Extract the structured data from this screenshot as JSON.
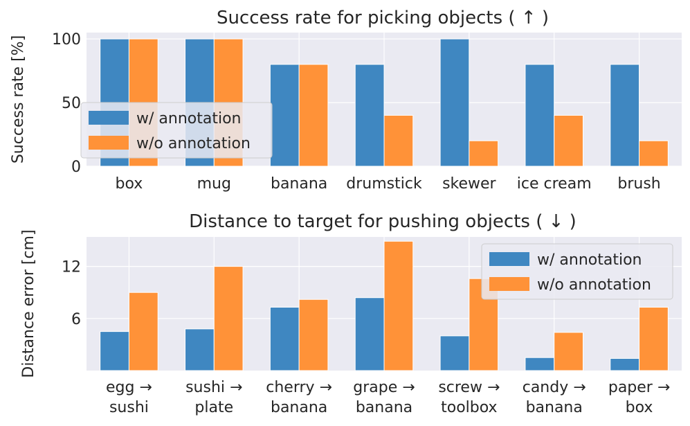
{
  "chart_data": [
    {
      "type": "bar",
      "title": "Success rate for picking objects ( ↑ )",
      "xlabel": "",
      "ylabel": "Success rate [%]",
      "ylim": [
        0,
        105
      ],
      "yticks": [
        0,
        50,
        100
      ],
      "categories": [
        [
          "box"
        ],
        [
          "mug"
        ],
        [
          "banana"
        ],
        [
          "drumstick"
        ],
        [
          "skewer"
        ],
        [
          "ice cream"
        ],
        [
          "brush"
        ]
      ],
      "series": [
        {
          "name": "w/ annotation",
          "color": "#3f87c1",
          "values": [
            100,
            100,
            80,
            80,
            100,
            80,
            80
          ]
        },
        {
          "name": "w/o annotation",
          "color": "#ff9238",
          "values": [
            100,
            100,
            80,
            40,
            20,
            40,
            20
          ]
        }
      ],
      "legend": "center-left"
    },
    {
      "type": "bar",
      "title": "Distance to target for pushing objects ( ↓ )",
      "xlabel": "",
      "ylabel": "Distance error [cm]",
      "ylim": [
        0,
        15.4
      ],
      "yticks": [
        6,
        12
      ],
      "categories": [
        [
          "egg →",
          "sushi"
        ],
        [
          "sushi →",
          "plate"
        ],
        [
          "cherry →",
          "banana"
        ],
        [
          "grape →",
          "banana"
        ],
        [
          "screw →",
          "toolbox"
        ],
        [
          "candy →",
          "banana"
        ],
        [
          "paper →",
          "box"
        ]
      ],
      "series": [
        {
          "name": "w/ annotation",
          "color": "#3f87c1",
          "values": [
            4.5,
            4.8,
            7.3,
            8.4,
            4.0,
            1.5,
            1.4
          ]
        },
        {
          "name": "w/o annotation",
          "color": "#ff9238",
          "values": [
            9.0,
            12.0,
            8.2,
            14.9,
            10.6,
            4.4,
            7.3
          ]
        }
      ],
      "legend": "top-right"
    }
  ]
}
